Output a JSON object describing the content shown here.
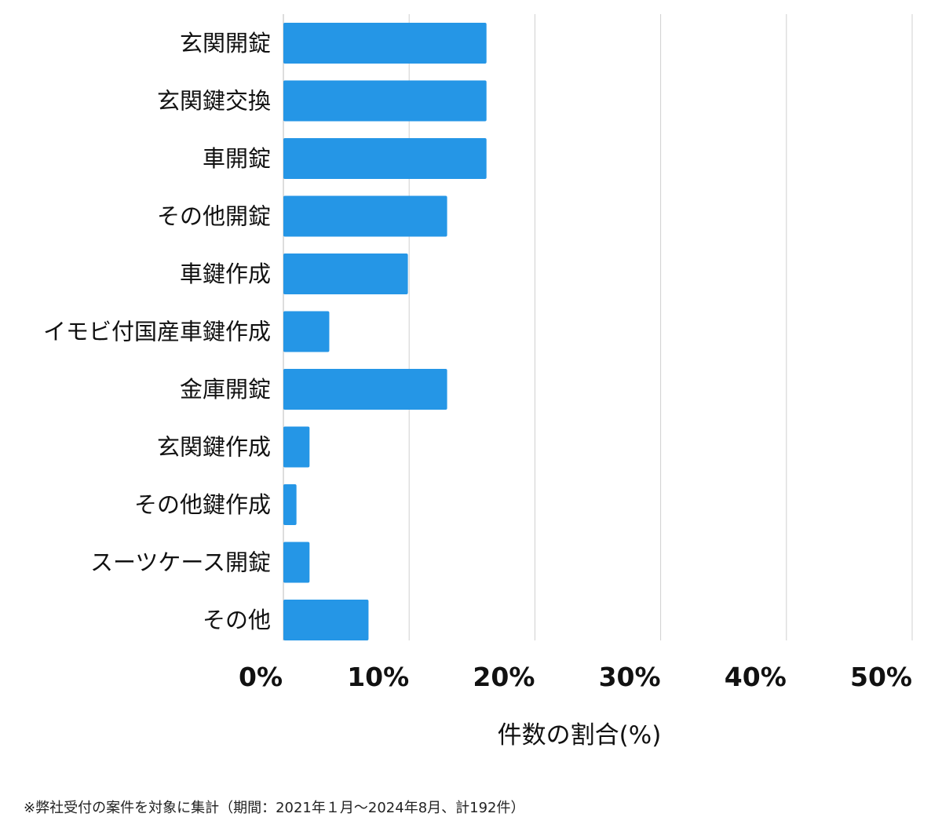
{
  "chart_data": {
    "type": "bar",
    "orientation": "horizontal",
    "categories": [
      "玄関開錠",
      "玄関鍵交換",
      "車開錠",
      "その他開錠",
      "車鍵作成",
      "イモビ付国産車鍵作成",
      "金庫開錠",
      "玄関鍵作成",
      "その他鍵作成",
      "スーツケース開錠",
      "その他"
    ],
    "values": [
      16.15,
      16.15,
      16.15,
      13.02,
      9.9,
      3.65,
      13.02,
      2.08,
      1.04,
      2.08,
      6.77
    ],
    "xlim": [
      0,
      50
    ],
    "xticks": [
      0,
      10,
      20,
      30,
      40,
      50
    ],
    "xtick_labels": [
      "0%",
      "10%",
      "20%",
      "30%",
      "40%",
      "50%"
    ],
    "xlabel": "件数の割合(%)",
    "ylabel": "",
    "grid": "vertical",
    "bar_color": "#2596e6",
    "grid_color": "#d0d0d0"
  },
  "footnote": "※弊社受付の案件を対象に集計（期間：2021年１月〜2024年8月、計192件）"
}
